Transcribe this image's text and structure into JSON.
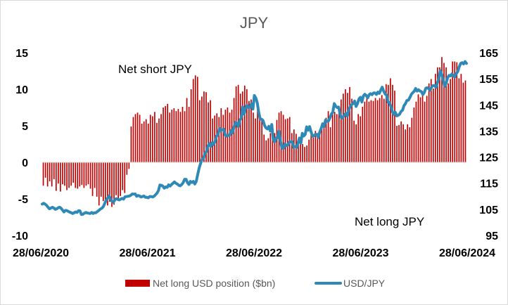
{
  "chart_data": {
    "type": "bar+line",
    "title": "JPY",
    "x_ticks": [
      "28/06/2020",
      "28/06/2021",
      "28/06/2022",
      "28/06/2023",
      "28/06/2024"
    ],
    "y_left": {
      "range": [
        -10,
        15
      ],
      "ticks": [
        -10,
        -5,
        0,
        5,
        10,
        15
      ]
    },
    "y_right": {
      "range": [
        95,
        165
      ],
      "ticks": [
        95,
        105,
        115,
        125,
        135,
        145,
        155,
        165
      ]
    },
    "annotations": [
      "Net short JPY",
      "Net long JPY"
    ],
    "legend": {
      "position": "bottom"
    },
    "series": [
      {
        "name": "Net long USD position ($bn)",
        "type": "bar",
        "axis": "left",
        "color": "#c00000",
        "values": [
          -3.2,
          -2.1,
          -3.3,
          -2.6,
          -3.3,
          -2.3,
          -3.9,
          -2.9,
          -4.0,
          -3.0,
          -3.2,
          -3.8,
          -3.5,
          -3.2,
          -2.8,
          -3.5,
          -3.6,
          -3.3,
          -3.1,
          -3.5,
          -3.2,
          -3.0,
          -3.6,
          -4.6,
          -3.5,
          -4.7,
          -5.9,
          -4.7,
          -5.3,
          -5.3,
          -5.9,
          -5.4,
          -6.1,
          -5.8,
          -4.5,
          -5.0,
          -4.6,
          -3.8,
          -4.2,
          -1.7,
          -0.9,
          4.9,
          6.2,
          6.6,
          6.8,
          6.5,
          5.3,
          5.6,
          5.9,
          5.3,
          6.5,
          6.3,
          6.9,
          5.4,
          6.0,
          6.6,
          7.5,
          7.7,
          8.0,
          6.8,
          7.2,
          7.4,
          7.0,
          7.3,
          6.9,
          7.6,
          7.0,
          8.8,
          7.6,
          10.0,
          11.4,
          11.9,
          11.7,
          8.5,
          9.0,
          9.7,
          9.6,
          8.2,
          8.5,
          6.0,
          6.4,
          6.7,
          6.2,
          7.4,
          6.5,
          7.2,
          7.5,
          6.8,
          7.2,
          8.8,
          10.4,
          10.6,
          9.4,
          9.7,
          10.5,
          10.0,
          8.4,
          8.6,
          6.8,
          6.0,
          7.4,
          6.2,
          5.8,
          3.8,
          3.0,
          3.3,
          4.0,
          4.1,
          4.0,
          5.8,
          6.8,
          7.0,
          6.5,
          5.9,
          6.0,
          6.2,
          4.0,
          4.5,
          3.9,
          3.1,
          3.5,
          2.5,
          2.1,
          2.3,
          3.1,
          4.1,
          3.4,
          4.3,
          4.0,
          4.2,
          4.6,
          5.3,
          6.1,
          7.0,
          4.8,
          7.4,
          6.9,
          6.6,
          7.1,
          8.6,
          9.4,
          10.0,
          9.5,
          10.3,
          8.7,
          5.7,
          5.2,
          6.6,
          6.3,
          7.6,
          8.3,
          8.8,
          8.3,
          8.5,
          8.4,
          8.8,
          8.5,
          8.8,
          9.2,
          8.7,
          10.7,
          10.6,
          11.5,
          10.6,
          9.8,
          5.0,
          5.1,
          5.6,
          5.2,
          4.5,
          5.2,
          4.8,
          6.1,
          7.5,
          8.3,
          9.3,
          8.9,
          9.5,
          8.3,
          9.1,
          10.8,
          11.4,
          10.1,
          12.1,
          13.0,
          13.0,
          14.4,
          13.6,
          13.0,
          10.8,
          11.4,
          13.8,
          13.8,
          13.7,
          11.5,
          12.1,
          10.9,
          11.2
        ]
      },
      {
        "name": "USD/JPY",
        "type": "line",
        "axis": "right",
        "color": "#2e89b6",
        "values": [
          107.0,
          107.3,
          107.0,
          106.5,
          105.8,
          105.2,
          105.5,
          105.8,
          105.5,
          105.0,
          105.2,
          105.6,
          105.8,
          105.4,
          104.7,
          104.0,
          104.6,
          104.5,
          104.2,
          103.9,
          103.7,
          103.4,
          103.7,
          104.0,
          103.8,
          104.5,
          104.4,
          103.0,
          103.1,
          103.5,
          103.8,
          103.6,
          103.5,
          103.4,
          103.8,
          103.4,
          103.7,
          103.7,
          104.2,
          104.6,
          105.1,
          105.4,
          106.0,
          107.2,
          108.5,
          109.2,
          110.2,
          109.1,
          108.1,
          107.7,
          108.6,
          109.1,
          108.8,
          108.6,
          108.9,
          109.2,
          108.9,
          109.8,
          109.9,
          110.0,
          110.1,
          110.4,
          110.9,
          110.8,
          110.9,
          110.0,
          110.3,
          110.1,
          109.7,
          109.9,
          110.1,
          109.6,
          109.6,
          109.4,
          109.9,
          109.9,
          109.7,
          110.0,
          110.6,
          111.2,
          112.2,
          114.3,
          114.2,
          113.9,
          113.1,
          113.6,
          113.4,
          114.4,
          113.9,
          114.5,
          115.0,
          115.5,
          115.0,
          114.7,
          114.2,
          114.0,
          114.5,
          115.2,
          116.5,
          116.5,
          115.2,
          114.5,
          115.7,
          115.3,
          115.7,
          114.7,
          115.7,
          118.3,
          120.8,
          122.6,
          124.1,
          124.5,
          126.5,
          127.1,
          129.2,
          130.2,
          129.1,
          130.5,
          129.8,
          131.1,
          133.1,
          133.5,
          136.0,
          135.4,
          135.5,
          135.7,
          133.4,
          133.0,
          133.3,
          133.4,
          135.2,
          134.3,
          136.5,
          138.3,
          138.0,
          136.6,
          139.1,
          140.0,
          144.3,
          141.5,
          143.8,
          144.8,
          144.0,
          144.1,
          145.5,
          143.4,
          148.6,
          147.7,
          145.8,
          142.2,
          139.6,
          139.5,
          139.0,
          137.1,
          136.2,
          135.8,
          136.8,
          135.0,
          137.5,
          131.8,
          130.8,
          132.4,
          132.4,
          135.0,
          131.0,
          128.5,
          128.3,
          130.1,
          129.4,
          129.5,
          130.7,
          130.8,
          131.0,
          128.8,
          129.1,
          128.7,
          130.4,
          132.3,
          130.3,
          134.1,
          133.1,
          133.7,
          136.6,
          135.3,
          136.7,
          134.8,
          133.0,
          133.2,
          133.7,
          133.7,
          132.5,
          134.6,
          136.0,
          137.8,
          136.6,
          139.2,
          138.7,
          138.8,
          140.0,
          141.5,
          142.2,
          145.5,
          144.5,
          144.0,
          144.2,
          141.5,
          139.9,
          140.4,
          141.1,
          141.8,
          140.7,
          143.1,
          144.4,
          145.1,
          145.5,
          146.5,
          144.4,
          145.5,
          147.3,
          147.9,
          146.1,
          148.4,
          149.1,
          148.6,
          147.7,
          148.9,
          149.3,
          148.9,
          149.6,
          149.6,
          149.0,
          149.9,
          149.4,
          150.7,
          151.8,
          150.3,
          149.2,
          148.8,
          146.0,
          145.9,
          144.4,
          142.4,
          141.4,
          142.2,
          140.8,
          141.0,
          141.5,
          142.5,
          143.0,
          144.7,
          145.5,
          146.7,
          146.8,
          147.8,
          149.0,
          149.7,
          150.2,
          151.3,
          150.3,
          150.8,
          150.3,
          150.1,
          149.0,
          149.8,
          151.4,
          151.6,
          151.2,
          150.7,
          151.9,
          152.4,
          152.4,
          151.7,
          153.5,
          155.2,
          158.1,
          156.6,
          154.5,
          152.1,
          153.3,
          155.4,
          156.3,
          156.1,
          156.9,
          156.2,
          155.7,
          157.0,
          157.8,
          159.6,
          160.9,
          161.2,
          160.7,
          161.6,
          160.9
        ]
      }
    ]
  }
}
